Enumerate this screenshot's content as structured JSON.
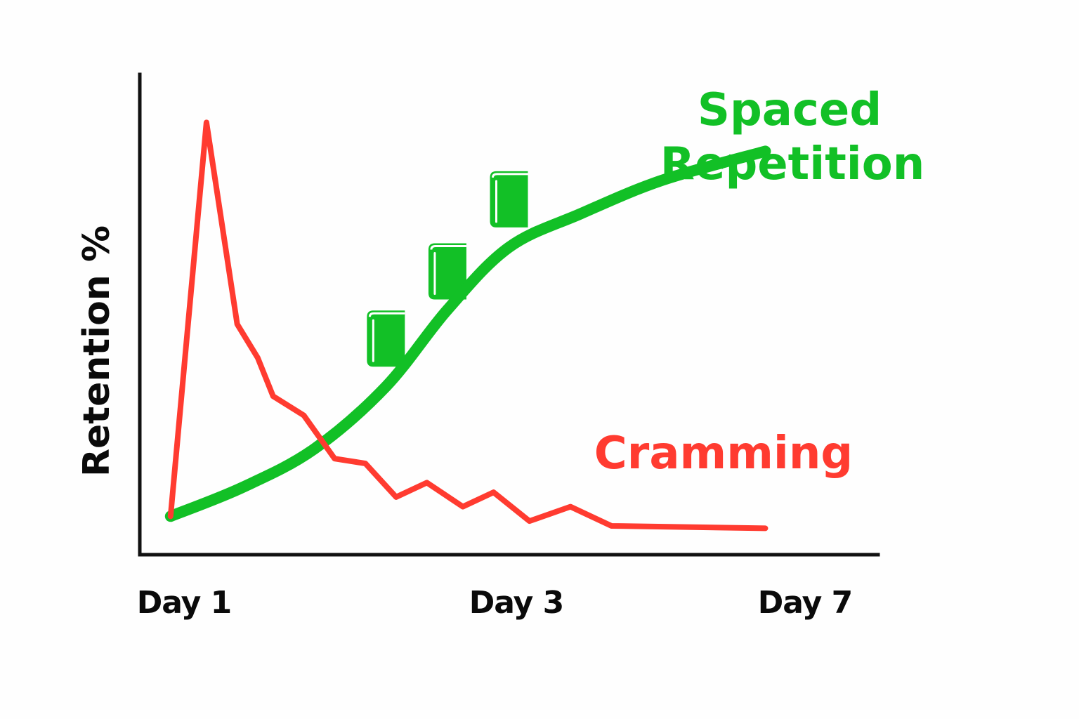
{
  "chart_data": {
    "type": "line",
    "title": "",
    "xlabel": "",
    "ylabel": "Retention %",
    "x_ticks": [
      "Day 1",
      "Day 3",
      "Day 7"
    ],
    "x_tick_positions": [
      1,
      3,
      7
    ],
    "xlim": [
      0.7,
      7.9
    ],
    "ylim": [
      0,
      100
    ],
    "grid": false,
    "legend": "inline labels",
    "icon": "book-icon",
    "icon_color": "#12c026",
    "series": [
      {
        "name": "Spaced Repetition",
        "color": "#12c026",
        "label_lines": [
          "Spaced",
          "Repetition"
        ],
        "points": [
          [
            1.0,
            8
          ],
          [
            1.7,
            14
          ],
          [
            2.4,
            22
          ],
          [
            3.1,
            35
          ],
          [
            3.7,
            51
          ],
          [
            4.3,
            64
          ],
          [
            5.0,
            71
          ],
          [
            5.8,
            78
          ],
          [
            6.8,
            84
          ]
        ]
      },
      {
        "name": "Cramming",
        "color": "#ff3b30",
        "label_lines": [
          "Cramming"
        ],
        "points": [
          [
            1.0,
            8
          ],
          [
            1.35,
            90
          ],
          [
            1.65,
            48
          ],
          [
            1.85,
            41
          ],
          [
            2.0,
            33
          ],
          [
            2.3,
            29
          ],
          [
            2.6,
            20
          ],
          [
            2.9,
            19
          ],
          [
            3.2,
            12
          ],
          [
            3.5,
            15
          ],
          [
            3.85,
            10
          ],
          [
            4.15,
            13
          ],
          [
            4.5,
            7
          ],
          [
            4.9,
            10
          ],
          [
            5.3,
            6
          ],
          [
            6.8,
            5.5
          ]
        ]
      }
    ],
    "book_markers": [
      {
        "x": 3.1,
        "y": 45
      },
      {
        "x": 3.7,
        "y": 59
      },
      {
        "x": 4.3,
        "y": 74
      }
    ]
  }
}
